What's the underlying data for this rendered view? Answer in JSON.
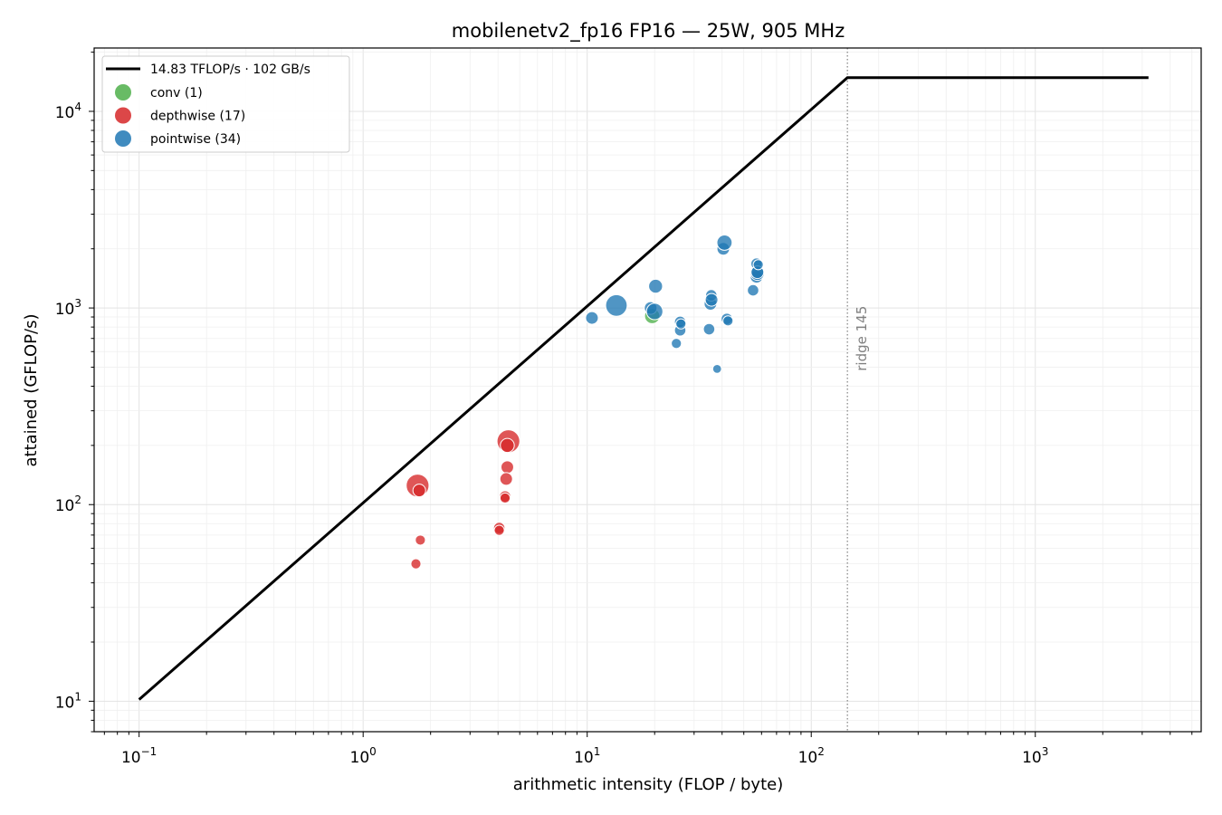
{
  "chart_data": {
    "type": "scatter",
    "title": "mobilenetv2_fp16 FP16 — 25W, 905 MHz",
    "xlabel": "arithmetic intensity  (FLOP / byte)",
    "ylabel": "attained  (GFLOP/s)",
    "xscale": "log",
    "yscale": "log",
    "xlim": [
      0.063,
      5500
    ],
    "ylim": [
      7,
      21000
    ],
    "grid": true,
    "legend_position": "top-left",
    "x_ticks": [
      {
        "base": "10",
        "exp": "−1",
        "value": 0.1
      },
      {
        "base": "10",
        "exp": "0",
        "value": 1
      },
      {
        "base": "10",
        "exp": "1",
        "value": 10
      },
      {
        "base": "10",
        "exp": "2",
        "value": 100
      },
      {
        "base": "10",
        "exp": "3",
        "value": 1000
      }
    ],
    "y_ticks": [
      {
        "base": "10",
        "exp": "1",
        "value": 10
      },
      {
        "base": "10",
        "exp": "2",
        "value": 100
      },
      {
        "base": "10",
        "exp": "3",
        "value": 1000
      },
      {
        "base": "10",
        "exp": "4",
        "value": 10000
      }
    ],
    "roofline": {
      "label": "14.83 TFLOP/s · 102 GB/s",
      "color": "#000000",
      "points": [
        [
          0.1,
          10.2
        ],
        [
          145,
          14830
        ],
        [
          3200,
          14830
        ]
      ]
    },
    "ridge": {
      "x": 145,
      "label": "ridge 145",
      "color": "#808080"
    },
    "series": [
      {
        "name": "conv (1)",
        "color": "#4daf4a",
        "points": [
          [
            19.5,
            910,
            1.2
          ]
        ]
      },
      {
        "name": "depthwise (17)",
        "color": "#d62728",
        "points": [
          [
            1.75,
            125,
            1.8
          ],
          [
            1.78,
            118,
            1.0
          ],
          [
            1.8,
            66,
            0.8
          ],
          [
            1.72,
            50,
            0.8
          ],
          [
            4.45,
            210,
            1.8
          ],
          [
            4.4,
            200,
            1.1
          ],
          [
            4.4,
            155,
            1.0
          ],
          [
            4.35,
            135,
            1.0
          ],
          [
            4.3,
            110,
            0.9
          ],
          [
            4.3,
            108,
            0.8
          ],
          [
            4.05,
            76,
            0.9
          ],
          [
            4.05,
            74,
            0.8
          ]
        ]
      },
      {
        "name": "pointwise (34)",
        "color": "#1f77b4",
        "points": [
          [
            10.5,
            890,
            1.0
          ],
          [
            13.5,
            1030,
            1.7
          ],
          [
            19.2,
            1000,
            1.0
          ],
          [
            20.0,
            960,
            1.3
          ],
          [
            20.2,
            1290,
            1.1
          ],
          [
            25.0,
            660,
            0.8
          ],
          [
            26.0,
            770,
            0.9
          ],
          [
            26.0,
            850,
            0.9
          ],
          [
            26.2,
            830,
            0.8
          ],
          [
            35.0,
            780,
            0.9
          ],
          [
            35.5,
            1050,
            1.0
          ],
          [
            35.8,
            1160,
            0.9
          ],
          [
            35.9,
            1100,
            1.0
          ],
          [
            38.0,
            490,
            0.7
          ],
          [
            40.5,
            2000,
            1.0
          ],
          [
            41.0,
            2150,
            1.2
          ],
          [
            42.0,
            880,
            0.9
          ],
          [
            42.5,
            860,
            0.8
          ],
          [
            55.0,
            1230,
            0.9
          ],
          [
            57.0,
            1680,
            0.9
          ],
          [
            57.0,
            1440,
            1.0
          ],
          [
            57.5,
            1500,
            1.1
          ],
          [
            57.5,
            1520,
            1.0
          ],
          [
            58.0,
            1660,
            0.8
          ]
        ]
      }
    ]
  }
}
